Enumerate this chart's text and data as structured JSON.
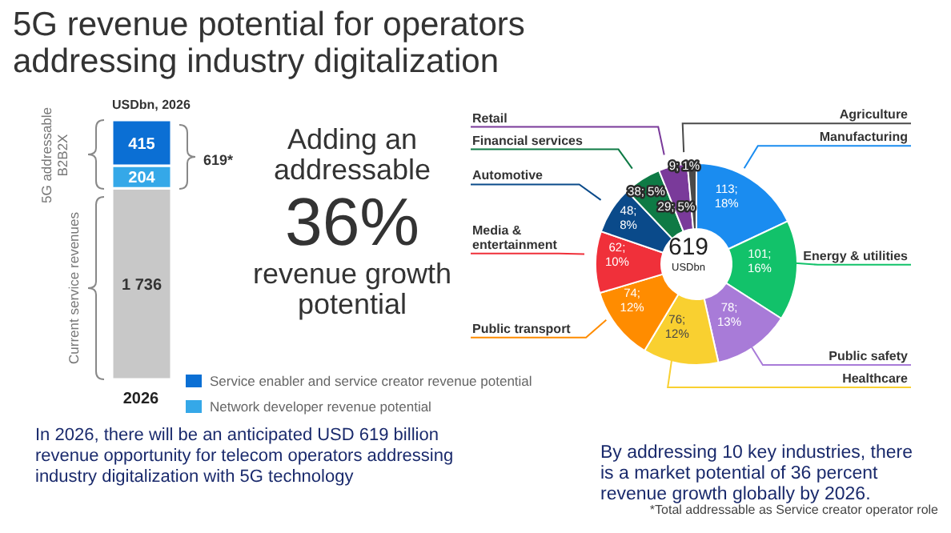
{
  "chart_data": [
    {
      "type": "bar",
      "stacked": true,
      "title": "5G revenue potential for operators addressing industry digitalization",
      "categories": [
        "2026"
      ],
      "series": [
        {
          "color": "#c8c8c8",
          "values": [
            1736
          ],
          "value_labels": [
            "1 736"
          ]
        },
        {
          "name": "Network developer revenue potential",
          "color": "#35a8e8",
          "values": [
            204
          ],
          "value_labels": [
            "204"
          ]
        },
        {
          "name": "Service enabler and service creator revenue potential",
          "color": "#0b6fd4",
          "values": [
            415
          ],
          "value_labels": [
            "415"
          ]
        }
      ],
      "legend": "bottom right",
      "annotations": [
        "USDbn, 2026",
        "5G addressable B2B2X",
        "Current service revenues",
        "619*",
        "Adding an addressable",
        "36%",
        "revenue growth potential",
        "In 2026, there will be an anticipated USD 619 billion revenue opportunity for telecom operators addressing industry digitalization with 5G technology"
      ]
    },
    {
      "type": "donut",
      "categories": [
        "Manufacturing",
        "Energy & utilities",
        "Public safety",
        "Healthcare",
        "Public transport",
        "Media & entertainment",
        "Automotive",
        "Financial services",
        "Retail",
        "Agriculture"
      ],
      "values": [
        113,
        101,
        78,
        76,
        74,
        62,
        48,
        38,
        29,
        9
      ],
      "colors": [
        "#1a8cf0",
        "#12c26a",
        "#a87bd8",
        "#f9d030",
        "#ff8c00",
        "#f0303a",
        "#0a4a8a",
        "#0e7a45",
        "#7a3a9a",
        "#4a4a4a"
      ],
      "value_labels": [
        "113; 18%",
        "101; 16%",
        "78; 13%",
        "76; 12%",
        "74; 12%",
        "62; 10%",
        "48; 8%",
        "38; 5%",
        "29; 5%",
        "9; 1%"
      ],
      "annotations": [
        "619",
        "USDbn",
        "By addressing 10 key industries, there is a market potential of 36 percent revenue growth globally by 2026.",
        "*Total addressable as Service creator operator role"
      ]
    }
  ]
}
